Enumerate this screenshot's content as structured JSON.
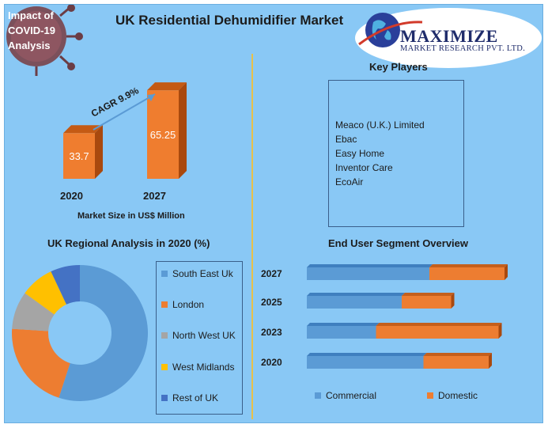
{
  "header": {
    "title": "UK Residential Dehumidifier Market",
    "covid_badge": [
      "Impact of",
      "COVID-19",
      "Analysis"
    ]
  },
  "logo": {
    "name": "MAXIMIZE",
    "subtitle": "MARKET RESEARCH PVT. LTD."
  },
  "colors": {
    "background": "#89c8f5",
    "bar_orange": "#ef7d2f",
    "commercial": "#5b9bd5",
    "domestic": "#ed7d31",
    "divider": "#e8c04a"
  },
  "chart_data": [
    {
      "type": "bar",
      "categories": [
        "2020",
        "2027"
      ],
      "values": [
        33.7,
        65.25
      ],
      "value_labels": [
        "33.7",
        "65.25"
      ],
      "xlabel": "Market Size in US$ Million",
      "annotation": "CAGR 9.9%"
    },
    {
      "type": "pie",
      "title": "UK Regional Analysis in 2020 (%)",
      "labels": [
        "South East Uk",
        "London",
        "North West UK",
        "West Midlands",
        "Rest of UK"
      ],
      "values": [
        55,
        21,
        9,
        8,
        7
      ],
      "colors": [
        "#5b9bd5",
        "#ed7d31",
        "#a5a5a5",
        "#ffc000",
        "#4472c4"
      ],
      "donut": true,
      "legend": "right"
    },
    {
      "type": "bar",
      "orientation": "horizontal",
      "stacked": true,
      "title": "End User Segment Overview",
      "categories": [
        "2027",
        "2025",
        "2023",
        "2020"
      ],
      "series": [
        {
          "name": "Commercial",
          "values": [
            62,
            48,
            35,
            59
          ]
        },
        {
          "name": "Domestic",
          "values": [
            38,
            25,
            62,
            33
          ]
        }
      ],
      "legend": "bottom"
    }
  ],
  "key_players": {
    "title": "Key Players",
    "items": [
      "Meaco (U.K.) Limited",
      "Ebac",
      "Easy Home",
      "Inventor Care",
      "EcoAir"
    ]
  }
}
